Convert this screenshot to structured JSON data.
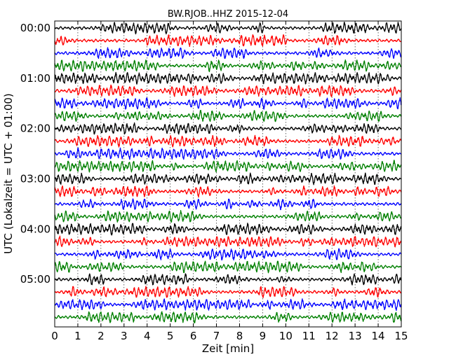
{
  "chart_data": {
    "type": "line",
    "title": "BW.RJOB..HHZ 2015-12-04",
    "xlabel": "Zeit  [min]",
    "ylabel": "UTC (Lokalzeit = UTC + 01:00)",
    "xlim": [
      0,
      15
    ],
    "x_ticks": [
      "0",
      "1",
      "2",
      "3",
      "4",
      "5",
      "6",
      "7",
      "8",
      "9",
      "10",
      "11",
      "12",
      "13",
      "14",
      "15"
    ],
    "y_tick_labels": [
      "00:00",
      "01:00",
      "02:00",
      "03:00",
      "04:00",
      "05:00"
    ],
    "rows_per_hour": 4,
    "row_minutes": 15,
    "trace_count": 24,
    "grid": "vertical dotted lines at each minute",
    "trace_colors": [
      "#000000",
      "#ff0000",
      "#0000ff",
      "#008000"
    ],
    "trace_amplitude_relative": 1.0
  }
}
